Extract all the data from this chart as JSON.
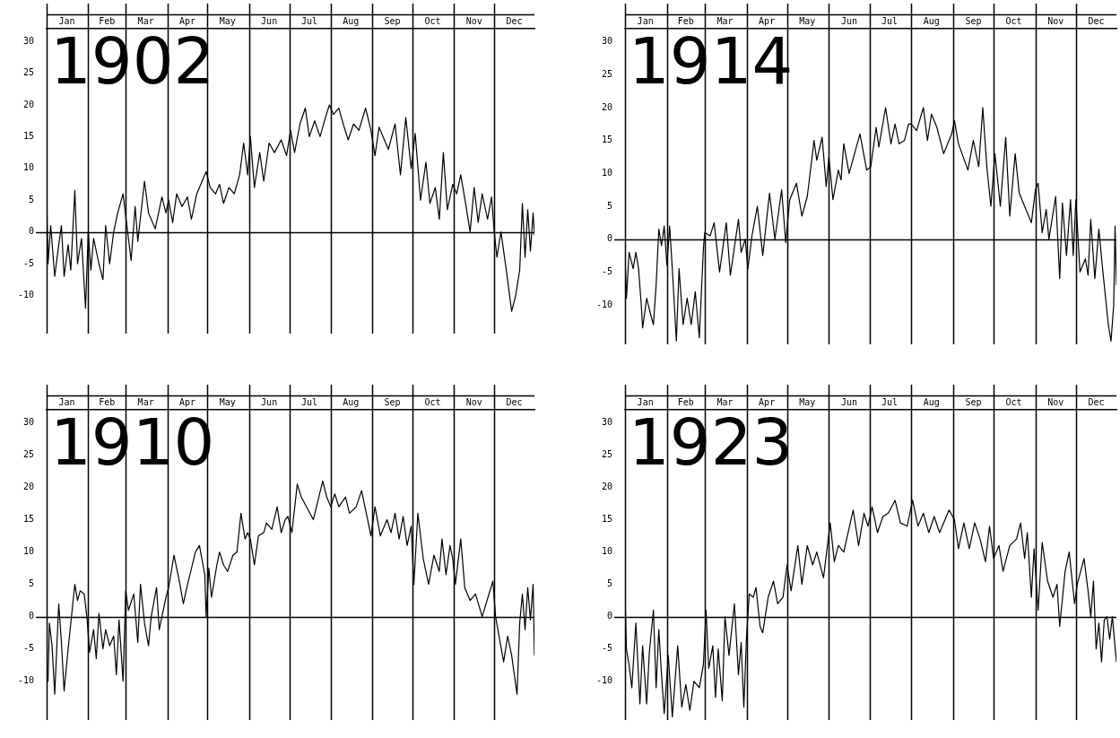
{
  "chart_data": [
    {
      "type": "line",
      "title": "1902",
      "color": "#000000",
      "grid": "x",
      "xlim": [
        "--01-01",
        "--12-31"
      ],
      "ylim": [
        -16,
        32
      ],
      "yticks": [
        -10,
        -5,
        0,
        5,
        10,
        15,
        20,
        25,
        30
      ],
      "xticks": [
        {
          "value": "--01-01",
          "label": null
        },
        {
          "value": "--01-16",
          "label": "Jan"
        },
        {
          "value": "--02-01",
          "label": null
        },
        {
          "value": "--02-15",
          "label": "Feb"
        },
        {
          "value": "--03-01",
          "label": null
        },
        {
          "value": "--03-16",
          "label": "Mar"
        },
        {
          "value": "--04-01",
          "label": null
        },
        {
          "value": "--04-16",
          "label": "Apr"
        },
        {
          "value": "--05-01",
          "label": null
        },
        {
          "value": "--05-16",
          "label": "May"
        },
        {
          "value": "--06-01",
          "label": null
        },
        {
          "value": "--06-16",
          "label": "Jun"
        },
        {
          "value": "--07-01",
          "label": null
        },
        {
          "value": "--07-16",
          "label": "Jul"
        },
        {
          "value": "--08-01",
          "label": null
        },
        {
          "value": "--08-16",
          "label": "Aug"
        },
        {
          "value": "--09-01",
          "label": null
        },
        {
          "value": "--09-16",
          "label": "Sep"
        },
        {
          "value": "--10-01",
          "label": null
        },
        {
          "value": "--10-16",
          "label": "Oct"
        },
        {
          "value": "--11-01",
          "label": null
        },
        {
          "value": "--11-16",
          "label": "Nov"
        },
        {
          "value": "--12-01",
          "label": null
        },
        {
          "value": "--12-16",
          "label": "Dec"
        }
      ],
      "ref_lines": [
        {
          "axis": "y",
          "value": 0
        }
      ],
      "x": [
        "--01-01",
        "--01-02",
        "--01-04",
        "--01-07",
        "--01-10",
        "--01-12",
        "--01-14",
        "--01-17",
        "--01-19",
        "--01-22",
        "--01-24",
        "--01-27",
        "--01-30",
        "--02-01",
        "--02-03",
        "--02-05",
        "--02-09",
        "--02-12",
        "--02-14",
        "--02-17",
        "--02-20",
        "--02-23",
        "--02-27",
        "--03-03",
        "--03-05",
        "--03-08",
        "--03-10",
        "--03-15",
        "--03-18",
        "--03-23",
        "--03-28",
        "--03-31",
        "--04-02",
        "--04-05",
        "--04-08",
        "--04-12",
        "--04-16",
        "--04-19",
        "--04-23",
        "--04-27",
        "--04-30",
        "--05-03",
        "--05-07",
        "--05-10",
        "--05-13",
        "--05-17",
        "--05-21",
        "--05-25",
        "--05-28",
        "--05-31",
        "--06-02",
        "--06-05",
        "--06-09",
        "--06-12",
        "--06-16",
        "--06-20",
        "--06-25",
        "--06-29",
        "--07-02",
        "--07-05",
        "--07-09",
        "--07-13",
        "--07-16",
        "--07-20",
        "--07-24",
        "--07-28",
        "--07-31",
        "--08-03",
        "--08-07",
        "--08-11",
        "--08-14",
        "--08-18",
        "--08-22",
        "--08-27",
        "--08-31",
        "--09-03",
        "--09-06",
        "--09-10",
        "--09-13",
        "--09-18",
        "--09-22",
        "--09-26",
        "--09-30",
        "--10-03",
        "--10-07",
        "--10-11",
        "--10-14",
        "--10-18",
        "--10-21",
        "--10-24",
        "--10-27",
        "--10-31",
        "--11-03",
        "--11-06",
        "--11-10",
        "--11-13",
        "--11-16",
        "--11-19",
        "--11-22",
        "--11-26",
        "--11-29",
        "--12-01",
        "--12-03",
        "--12-06",
        "--12-10",
        "--12-14",
        "--12-17",
        "--12-20",
        "--12-22",
        "--12-24",
        "--12-26",
        "--12-28",
        "--12-30",
        "--12-31"
      ],
      "values": [
        5.5,
        -5,
        1,
        -7,
        -2,
        1,
        -7,
        -2,
        -6,
        6.5,
        -5,
        -1,
        -12,
        0,
        -6,
        -1,
        -5,
        -7.5,
        1,
        -5,
        0,
        3,
        6,
        -1,
        -4.5,
        4,
        -1.5,
        8,
        3,
        0.5,
        5.5,
        3,
        5,
        1.5,
        6,
        4,
        5.5,
        2,
        6,
        8,
        9.5,
        7,
        6,
        7.5,
        4.5,
        7,
        6,
        9,
        14,
        9,
        15,
        7,
        12.5,
        8,
        14,
        12.5,
        14.5,
        12,
        16,
        12.5,
        17,
        19.5,
        15,
        17.5,
        15,
        18,
        20,
        18.5,
        19.5,
        16.5,
        14.5,
        17,
        16,
        19.5,
        16,
        12,
        16.5,
        14.5,
        13,
        17,
        9,
        18,
        10,
        15.5,
        5,
        11,
        4.5,
        7,
        2,
        12.5,
        3.5,
        7.5,
        6,
        9,
        4,
        0,
        7,
        1.5,
        6,
        2,
        5.5,
        0,
        -4,
        0,
        -6,
        -12.5,
        -10,
        -6,
        4.5,
        -4,
        3.5,
        -3,
        3,
        -0.5
      ]
    },
    {
      "type": "line",
      "title": "1914",
      "color": "#000000",
      "grid": "x",
      "xlim": [
        "--01-01",
        "--12-31"
      ],
      "ylim": [
        -16,
        32
      ],
      "yticks": [
        -10,
        -5,
        0,
        5,
        10,
        15,
        20,
        25,
        30
      ],
      "xticks": [
        {
          "value": "--01-01",
          "label": null
        },
        {
          "value": "--01-16",
          "label": "Jan"
        },
        {
          "value": "--02-01",
          "label": null
        },
        {
          "value": "--02-15",
          "label": "Feb"
        },
        {
          "value": "--03-01",
          "label": null
        },
        {
          "value": "--03-16",
          "label": "Mar"
        },
        {
          "value": "--04-01",
          "label": null
        },
        {
          "value": "--04-16",
          "label": "Apr"
        },
        {
          "value": "--05-01",
          "label": null
        },
        {
          "value": "--05-16",
          "label": "May"
        },
        {
          "value": "--06-01",
          "label": null
        },
        {
          "value": "--06-16",
          "label": "Jun"
        },
        {
          "value": "--07-01",
          "label": null
        },
        {
          "value": "--07-16",
          "label": "Jul"
        },
        {
          "value": "--08-01",
          "label": null
        },
        {
          "value": "--08-16",
          "label": "Aug"
        },
        {
          "value": "--09-01",
          "label": null
        },
        {
          "value": "--09-16",
          "label": "Sep"
        },
        {
          "value": "--10-01",
          "label": null
        },
        {
          "value": "--10-16",
          "label": "Oct"
        },
        {
          "value": "--11-01",
          "label": null
        },
        {
          "value": "--11-16",
          "label": "Nov"
        },
        {
          "value": "--12-01",
          "label": null
        },
        {
          "value": "--12-16",
          "label": "Dec"
        }
      ],
      "ref_lines": [
        {
          "axis": "y",
          "value": 0
        }
      ],
      "x": [
        "--01-01",
        "--01-02",
        "--01-04",
        "--01-07",
        "--01-09",
        "--01-11",
        "--01-13",
        "--01-14",
        "--01-17",
        "--01-20",
        "--01-22",
        "--01-24",
        "--01-26",
        "--01-28",
        "--01-30",
        "--02-01",
        "--02-03",
        "--02-05",
        "--02-08",
        "--02-10",
        "--02-13",
        "--02-16",
        "--02-19",
        "--02-22",
        "--02-25",
        "--02-28",
        "--03-01",
        "--03-05",
        "--03-08",
        "--03-12",
        "--03-17",
        "--03-20",
        "--03-26",
        "--03-28",
        "--03-31",
        "--04-02",
        "--04-05",
        "--04-09",
        "--04-13",
        "--04-18",
        "--04-22",
        "--04-27",
        "--04-30",
        "--05-03",
        "--05-08",
        "--05-12",
        "--05-16",
        "--05-21",
        "--05-23",
        "--05-27",
        "--05-30",
        "--06-01",
        "--06-04",
        "--06-08",
        "--06-10",
        "--06-12",
        "--06-16",
        "--06-20",
        "--06-24",
        "--06-29",
        "--07-02",
        "--07-06",
        "--07-08",
        "--07-13",
        "--07-17",
        "--07-20",
        "--07-23",
        "--07-27",
        "--07-30",
        "--08-01",
        "--08-05",
        "--08-10",
        "--08-13",
        "--08-16",
        "--08-20",
        "--08-25",
        "--08-31",
        "--09-02",
        "--09-05",
        "--09-12",
        "--09-16",
        "--09-20",
        "--09-23",
        "--09-26",
        "--09-29",
        "--10-02",
        "--10-06",
        "--10-10",
        "--10-13",
        "--10-17",
        "--10-20",
        "--10-25",
        "--10-29",
        "--11-01",
        "--11-03",
        "--11-06",
        "--11-09",
        "--11-11",
        "--11-16",
        "--11-19",
        "--11-21",
        "--11-24",
        "--11-27",
        "--11-29",
        "--12-01",
        "--12-04",
        "--12-08",
        "--12-10",
        "--12-12",
        "--12-15",
        "--12-18",
        "--12-21",
        "--12-25",
        "--12-27",
        "--12-29",
        "--12-30",
        "--12-31"
      ],
      "values": [
        -2.5,
        -9,
        -2,
        -4.5,
        -2,
        -4.5,
        -10,
        -13.5,
        -9,
        -11.5,
        -13,
        -7,
        1.5,
        -1,
        2,
        -4,
        2,
        -4.5,
        -15.5,
        -4.5,
        -13,
        -9,
        -13,
        -8,
        -15,
        -1.5,
        1,
        0.5,
        2.5,
        -5,
        2.5,
        -5.5,
        3,
        -2,
        0,
        -4.5,
        0.5,
        5,
        -2.5,
        7,
        0,
        7.5,
        -0.5,
        6,
        8.5,
        3.5,
        6.5,
        15,
        12,
        15.5,
        8,
        12.5,
        6,
        10.5,
        9,
        14.5,
        10,
        13,
        16,
        10.5,
        11,
        17,
        14,
        20,
        14.5,
        17.5,
        14.5,
        15,
        17.5,
        17.5,
        16.5,
        20,
        15,
        19,
        17,
        13,
        16,
        18,
        14.5,
        10.5,
        15,
        11,
        20,
        11,
        5,
        13,
        5,
        15.5,
        3.5,
        13,
        7,
        4.5,
        2.5,
        7.5,
        8.5,
        1,
        4.5,
        0,
        6.5,
        -6,
        5.5,
        -2.5,
        6,
        -2.5,
        6,
        -5,
        -3,
        -5.5,
        3,
        -6,
        1.5,
        -5,
        -13,
        -15.5,
        -10,
        2,
        -7
      ]
    },
    {
      "type": "line",
      "title": "1910",
      "color": "#000000",
      "grid": "x",
      "xlim": [
        "--01-01",
        "--12-31"
      ],
      "ylim": [
        -16,
        32
      ],
      "yticks": [
        -10,
        -5,
        0,
        5,
        10,
        15,
        20,
        25,
        30
      ],
      "xticks": [
        {
          "value": "--01-01",
          "label": null
        },
        {
          "value": "--01-16",
          "label": "Jan"
        },
        {
          "value": "--02-01",
          "label": null
        },
        {
          "value": "--02-15",
          "label": "Feb"
        },
        {
          "value": "--03-01",
          "label": null
        },
        {
          "value": "--03-16",
          "label": "Mar"
        },
        {
          "value": "--04-01",
          "label": null
        },
        {
          "value": "--04-16",
          "label": "Apr"
        },
        {
          "value": "--05-01",
          "label": null
        },
        {
          "value": "--05-16",
          "label": "May"
        },
        {
          "value": "--06-01",
          "label": null
        },
        {
          "value": "--06-16",
          "label": "Jun"
        },
        {
          "value": "--07-01",
          "label": null
        },
        {
          "value": "--07-16",
          "label": "Jul"
        },
        {
          "value": "--08-01",
          "label": null
        },
        {
          "value": "--08-16",
          "label": "Aug"
        },
        {
          "value": "--09-01",
          "label": null
        },
        {
          "value": "--09-16",
          "label": "Sep"
        },
        {
          "value": "--10-01",
          "label": null
        },
        {
          "value": "--10-16",
          "label": "Oct"
        },
        {
          "value": "--11-01",
          "label": null
        },
        {
          "value": "--11-16",
          "label": "Nov"
        },
        {
          "value": "--12-01",
          "label": null
        },
        {
          "value": "--12-16",
          "label": "Dec"
        }
      ],
      "ref_lines": [
        {
          "axis": "y",
          "value": 0
        }
      ],
      "x": [
        "--01-01",
        "--01-02",
        "--01-03",
        "--01-05",
        "--01-07",
        "--01-10",
        "--01-12",
        "--01-14",
        "--01-17",
        "--01-19",
        "--01-22",
        "--01-24",
        "--01-26",
        "--01-29",
        "--01-31",
        "--02-02",
        "--02-05",
        "--02-07",
        "--02-09",
        "--02-12",
        "--02-14",
        "--02-17",
        "--02-20",
        "--02-22",
        "--02-24",
        "--02-27",
        "--03-01",
        "--03-03",
        "--03-07",
        "--03-10",
        "--03-12",
        "--03-15",
        "--03-18",
        "--03-20",
        "--03-24",
        "--03-26",
        "--03-31",
        "--04-02",
        "--04-06",
        "--04-10",
        "--04-13",
        "--04-15",
        "--04-22",
        "--04-25",
        "--04-29",
        "--04-30",
        "--05-02",
        "--05-04",
        "--05-08",
        "--05-10",
        "--05-13",
        "--05-16",
        "--05-20",
        "--05-23",
        "--05-26",
        "--05-29",
        "--05-31",
        "--06-02",
        "--06-05",
        "--06-08",
        "--06-12",
        "--06-14",
        "--06-18",
        "--06-22",
        "--06-25",
        "--06-28",
        "--06-30",
        "--07-03",
        "--07-07",
        "--07-10",
        "--07-19",
        "--07-26",
        "--07-29",
        "--08-01",
        "--08-04",
        "--08-07",
        "--08-12",
        "--08-15",
        "--08-20",
        "--08-24",
        "--08-28",
        "--08-31",
        "--09-03",
        "--09-07",
        "--09-12",
        "--09-15",
        "--09-18",
        "--09-21",
        "--09-24",
        "--09-27",
        "--09-30",
        "--10-02",
        "--10-05",
        "--10-09",
        "--10-13",
        "--10-17",
        "--10-21",
        "--10-23",
        "--10-26",
        "--10-29",
        "--10-31",
        "--11-02",
        "--11-06",
        "--11-09",
        "--11-13",
        "--11-17",
        "--11-22",
        "--11-30",
        "--12-02",
        "--12-05",
        "--12-08",
        "--12-11",
        "--12-14",
        "--12-18",
        "--12-20",
        "--12-22",
        "--12-24",
        "--12-26",
        "--12-28",
        "--12-30",
        "--12-31"
      ],
      "values": [
        -8,
        -10,
        -1,
        -4.5,
        -12,
        2,
        -4,
        -11.5,
        -5,
        -1,
        5,
        2.5,
        4,
        3.5,
        0,
        -5.5,
        -2,
        -6.5,
        0.5,
        -5,
        -2,
        -4.5,
        -3,
        -9,
        -0.5,
        -10,
        4,
        1,
        3.5,
        -4,
        5,
        -1,
        -4.5,
        0,
        4.5,
        -2,
        3,
        4.5,
        9.5,
        5.5,
        2,
        4,
        10,
        11,
        6.5,
        0,
        7.5,
        3,
        8,
        10,
        8,
        7,
        9.5,
        10,
        16,
        12,
        13,
        12,
        8,
        12.5,
        13,
        14.5,
        13.5,
        17,
        13,
        15,
        15.5,
        13,
        20.5,
        18.5,
        15,
        21,
        18.5,
        17,
        19,
        17,
        18.5,
        16,
        17,
        19.5,
        15.5,
        12.5,
        17,
        12.5,
        15,
        13,
        16,
        12,
        15.5,
        11,
        14,
        5,
        16,
        9,
        5,
        9.5,
        7,
        12,
        6.5,
        11,
        9,
        5,
        12,
        4.5,
        2.5,
        3.5,
        0,
        5.5,
        0,
        -3.5,
        -7,
        -3,
        -6,
        -12,
        -1,
        3.5,
        -2,
        4.5,
        -0.5,
        5,
        -6
      ]
    },
    {
      "type": "line",
      "title": "1923",
      "color": "#000000",
      "grid": "x",
      "xlim": [
        "--01-01",
        "--12-31"
      ],
      "ylim": [
        -16,
        32
      ],
      "yticks": [
        -10,
        -5,
        0,
        5,
        10,
        15,
        20,
        25,
        30
      ],
      "xticks": [
        {
          "value": "--01-01",
          "label": null
        },
        {
          "value": "--01-16",
          "label": "Jan"
        },
        {
          "value": "--02-01",
          "label": null
        },
        {
          "value": "--02-15",
          "label": "Feb"
        },
        {
          "value": "--03-01",
          "label": null
        },
        {
          "value": "--03-16",
          "label": "Mar"
        },
        {
          "value": "--04-01",
          "label": null
        },
        {
          "value": "--04-16",
          "label": "Apr"
        },
        {
          "value": "--05-01",
          "label": null
        },
        {
          "value": "--05-16",
          "label": "May"
        },
        {
          "value": "--06-01",
          "label": null
        },
        {
          "value": "--06-16",
          "label": "Jun"
        },
        {
          "value": "--07-01",
          "label": null
        },
        {
          "value": "--07-16",
          "label": "Jul"
        },
        {
          "value": "--08-01",
          "label": null
        },
        {
          "value": "--08-16",
          "label": "Aug"
        },
        {
          "value": "--09-01",
          "label": null
        },
        {
          "value": "--09-16",
          "label": "Sep"
        },
        {
          "value": "--10-01",
          "label": null
        },
        {
          "value": "--10-16",
          "label": "Oct"
        },
        {
          "value": "--11-01",
          "label": null
        },
        {
          "value": "--11-16",
          "label": "Nov"
        },
        {
          "value": "--12-01",
          "label": null
        },
        {
          "value": "--12-16",
          "label": "Dec"
        }
      ],
      "ref_lines": [
        {
          "axis": "y",
          "value": 0
        }
      ],
      "x": [
        "--01-01",
        "--01-02",
        "--01-04",
        "--01-06",
        "--01-09",
        "--01-12",
        "--01-14",
        "--01-17",
        "--01-19",
        "--01-22",
        "--01-24",
        "--01-26",
        "--01-28",
        "--01-30",
        "--02-02",
        "--02-05",
        "--02-09",
        "--02-12",
        "--02-15",
        "--02-18",
        "--02-21",
        "--02-25",
        "--02-28",
        "--03-02",
        "--03-04",
        "--03-07",
        "--03-09",
        "--03-11",
        "--03-14",
        "--03-16",
        "--03-19",
        "--03-23",
        "--03-26",
        "--03-28",
        "--03-30",
        "--04-01",
        "--04-03",
        "--04-06",
        "--04-08",
        "--04-11",
        "--04-13",
        "--04-17",
        "--04-21",
        "--04-24",
        "--04-28",
        "--05-01",
        "--05-04",
        "--05-09",
        "--05-12",
        "--05-16",
        "--05-20",
        "--05-23",
        "--05-28",
        "--06-02",
        "--06-05",
        "--06-08",
        "--06-12",
        "--06-19",
        "--06-23",
        "--06-27",
        "--06-30",
        "--07-03",
        "--07-07",
        "--07-11",
        "--07-15",
        "--07-20",
        "--07-24",
        "--07-29",
        "--08-02",
        "--08-06",
        "--08-10",
        "--08-14",
        "--08-18",
        "--08-22",
        "--08-26",
        "--08-29",
        "--09-02",
        "--09-05",
        "--09-09",
        "--09-13",
        "--09-17",
        "--09-21",
        "--09-25",
        "--09-28",
        "--10-01",
        "--10-05",
        "--10-08",
        "--10-13",
        "--10-18",
        "--10-21",
        "--10-24",
        "--10-26",
        "--10-29",
        "--10-31",
        "--11-03",
        "--11-06",
        "--11-10",
        "--11-14",
        "--11-17",
        "--11-19",
        "--11-23",
        "--11-26",
        "--11-30",
        "--12-02",
        "--12-07",
        "--12-10",
        "--12-12",
        "--12-14",
        "--12-16",
        "--12-18",
        "--12-20",
        "--12-22",
        "--12-24",
        "--12-26",
        "--12-28",
        "--12-31"
      ],
      "values": [
        3.5,
        -5,
        -7.5,
        -11,
        -1,
        -13.5,
        -4.5,
        -13.5,
        -5.5,
        1,
        -11,
        -2,
        -9,
        -15,
        -6,
        -15.5,
        -4.5,
        -14,
        -10.5,
        -14.5,
        -10,
        -11,
        -7.5,
        1,
        -8,
        -4.5,
        -12.5,
        -5,
        -13,
        0,
        -6,
        2,
        -9,
        -4,
        -14,
        -3,
        3.5,
        3,
        4.5,
        -1.5,
        -2.5,
        3,
        5.5,
        2,
        3,
        8,
        4,
        11,
        5,
        11,
        8,
        10,
        6,
        14.5,
        8.5,
        11,
        10,
        16.5,
        11,
        16,
        14,
        17,
        13,
        15.5,
        16,
        18,
        14.5,
        14,
        18,
        14,
        16,
        13,
        15.5,
        13,
        15,
        16.5,
        15,
        10.5,
        14.5,
        10.5,
        14.5,
        12,
        8.5,
        14,
        9,
        11,
        7,
        11,
        12,
        14.5,
        9,
        13,
        3,
        10.5,
        1,
        11.5,
        5.5,
        3,
        5,
        -1.5,
        7,
        10,
        2,
        5,
        9,
        4,
        0,
        5.5,
        -5,
        -1,
        -7,
        -0.5,
        0,
        -3.5,
        0,
        -7
      ]
    }
  ]
}
